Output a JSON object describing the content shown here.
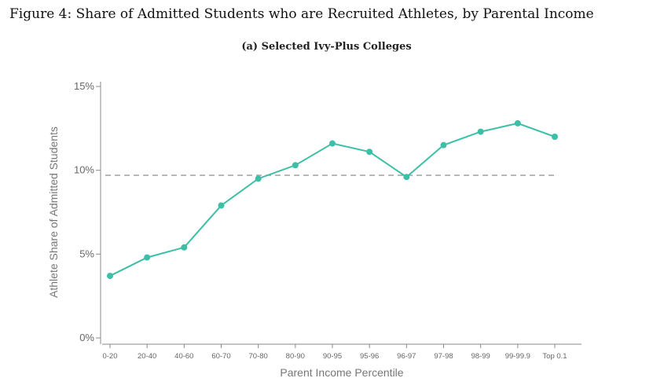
{
  "figure_title": "Figure 4: Share of Admitted Students who are Recruited Athletes, by Parental Income",
  "chart_data": {
    "type": "line",
    "title": "(a) Selected Ivy-Plus Colleges",
    "xlabel": "Parent Income Percentile",
    "ylabel": "Athlete Share of Admitted Students",
    "categories": [
      "0-20",
      "20-40",
      "40-60",
      "60-70",
      "70-80",
      "80-90",
      "90-95",
      "95-96",
      "96-97",
      "97-98",
      "98-99",
      "99-99.9",
      "Top 0.1"
    ],
    "series": [
      {
        "values": [
          3.7,
          4.8,
          5.4,
          7.9,
          9.5,
          10.3,
          11.6,
          11.1,
          9.6,
          11.5,
          12.3,
          12.8,
          12.0
        ],
        "color": "#3dbfa7"
      }
    ],
    "reference_line": {
      "value": 9.7,
      "style": "dashed",
      "color": "#a8a8a8"
    },
    "ylim": [
      0,
      15
    ],
    "yticks": [
      0,
      5,
      10,
      15
    ],
    "ytick_labels": [
      "0%",
      "5%",
      "10%",
      "15%"
    ],
    "grid": false,
    "legend": "none"
  }
}
